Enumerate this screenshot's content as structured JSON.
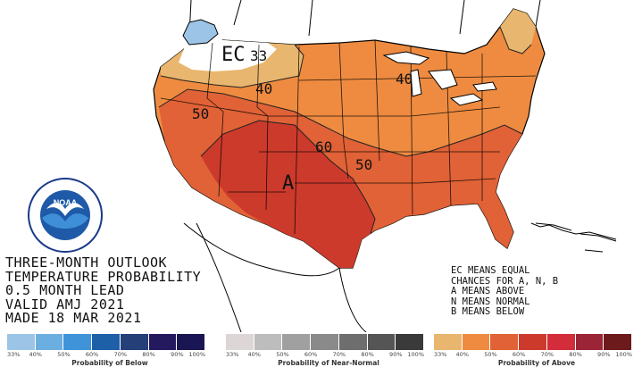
{
  "map": {
    "labels": {
      "ec": "EC",
      "c33": "33",
      "c40_west": "40",
      "c40_east": "40",
      "c50_west": "50",
      "c50_plains": "50",
      "c60": "60",
      "a": "A"
    }
  },
  "title": {
    "line1": "THREE-MONTH OUTLOOK",
    "line2": "TEMPERATURE PROBABILITY",
    "line3": "0.5 MONTH LEAD",
    "line4": "VALID AMJ 2021",
    "line5": "MADE 18 MAR 2021"
  },
  "note": {
    "line1": "EC MEANS EQUAL",
    "line2": "CHANCES FOR A, N, B",
    "line3": "A MEANS ABOVE",
    "line4": "N MEANS NORMAL",
    "line5": "B MEANS BELOW"
  },
  "legend": {
    "below": {
      "title": "Probability of Below",
      "ticks": [
        "33%",
        "40%",
        "50%",
        "60%",
        "70%",
        "80%",
        "90%",
        "100%"
      ],
      "colors": [
        "#9cc4e6",
        "#6baee0",
        "#3f93d8",
        "#1e60a8",
        "#253f78",
        "#24195f",
        "#1a1654"
      ]
    },
    "normal": {
      "title": "Probability of Near-Normal",
      "ticks": [
        "33%",
        "40%",
        "50%",
        "60%",
        "70%",
        "80%",
        "90%",
        "100%"
      ],
      "colors": [
        "#dcd6d6",
        "#bdbdbd",
        "#a0a0a0",
        "#8a8a8a",
        "#6e6e6e",
        "#555555",
        "#3a3a3a"
      ]
    },
    "above": {
      "title": "Probability of Above",
      "ticks": [
        "33%",
        "40%",
        "50%",
        "60%",
        "70%",
        "80%",
        "90%",
        "100%"
      ],
      "colors": [
        "#e8b66e",
        "#ee8b40",
        "#e06236",
        "#cc3a2c",
        "#d32c3a",
        "#9b2436",
        "#6c1a1c"
      ]
    }
  },
  "colors": {
    "above_33": "#e8b66e",
    "above_40": "#ee8b40",
    "above_50": "#e06236",
    "above_60": "#cc3a2c",
    "below_33": "#9cc4e6"
  },
  "logo": {
    "icon": "noaa-seal-icon",
    "center_text": "NOAA"
  }
}
